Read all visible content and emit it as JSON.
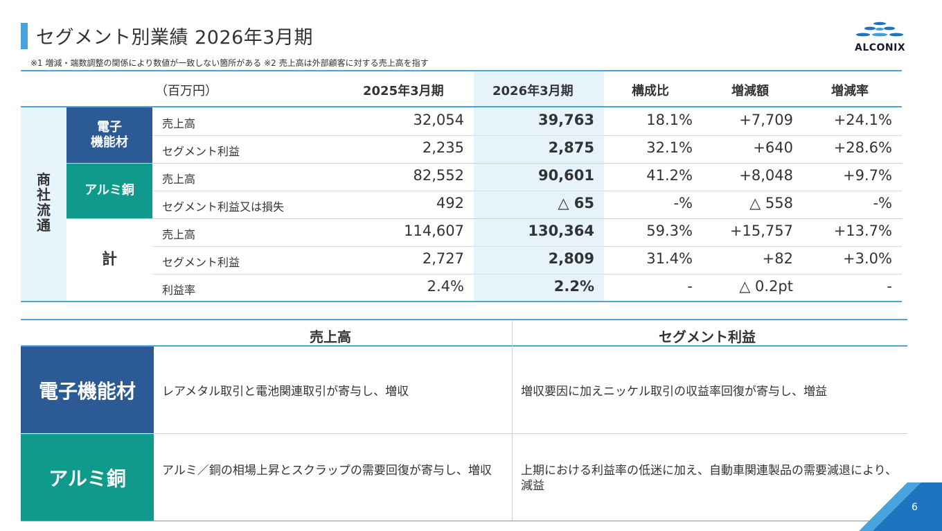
{
  "header": {
    "title": "セグメント別業績 2026年3月期",
    "note": "※1 増減・端数調整の関係により数値が一致しない箇所がある ※2 売上高は外部顧客に対する売上高を指す",
    "logo_text": "ALCONIX"
  },
  "table": {
    "unit": "（百万円）",
    "columns": [
      "2025年3月期",
      "2026年3月期",
      "構成比",
      "増減額",
      "増減率"
    ],
    "side_label": "商社流通",
    "segments": [
      {
        "name": "電子\n機能材",
        "rows": [
          {
            "label": "売上高",
            "values": [
              "32,054",
              "39,763",
              "18.1%",
              "+7,709",
              "+24.1%"
            ]
          },
          {
            "label": "セグメント利益",
            "values": [
              "2,235",
              "2,875",
              "32.1%",
              "+640",
              "+28.6%"
            ]
          }
        ]
      },
      {
        "name": "アルミ銅",
        "rows": [
          {
            "label": "売上高",
            "values": [
              "82,552",
              "90,601",
              "41.2%",
              "+8,048",
              "+9.7%"
            ]
          },
          {
            "label": "セグメント利益又は損失",
            "values": [
              "492",
              "△ 65",
              "-%",
              "△ 558",
              "-%"
            ]
          }
        ]
      },
      {
        "name": "計",
        "rows": [
          {
            "label": "売上高",
            "values": [
              "114,607",
              "130,364",
              "59.3%",
              "+15,757",
              "+13.7%"
            ]
          },
          {
            "label": "セグメント利益",
            "values": [
              "2,727",
              "2,809",
              "31.4%",
              "+82",
              "+3.0%"
            ]
          },
          {
            "label": "利益率",
            "values": [
              "2.4%",
              "2.2%",
              "-",
              "△ 0.2pt",
              "-"
            ]
          }
        ]
      }
    ]
  },
  "summary": {
    "headers": [
      "売上高",
      "セグメント利益"
    ],
    "rows": [
      {
        "segment": "電子機能材",
        "sales": "レアメタル取引と電池関連取引が寄与し、増収",
        "profit": "増収要因に加えニッケル取引の収益率回復が寄与し、増益"
      },
      {
        "segment": "アルミ銅",
        "sales": "アルミ／銅の相場上昇とスクラップの需要回復が寄与し、増収",
        "profit": "上期における利益率の低迷に加え、自動車関連製品の需要減退により、減益"
      }
    ]
  },
  "page_number": "6",
  "colors": {
    "accent": "#4aa3df",
    "electronic": "#2b5a94",
    "aluminum_copper": "#0f9a8c",
    "highlight_column": "#e6f3fb"
  }
}
